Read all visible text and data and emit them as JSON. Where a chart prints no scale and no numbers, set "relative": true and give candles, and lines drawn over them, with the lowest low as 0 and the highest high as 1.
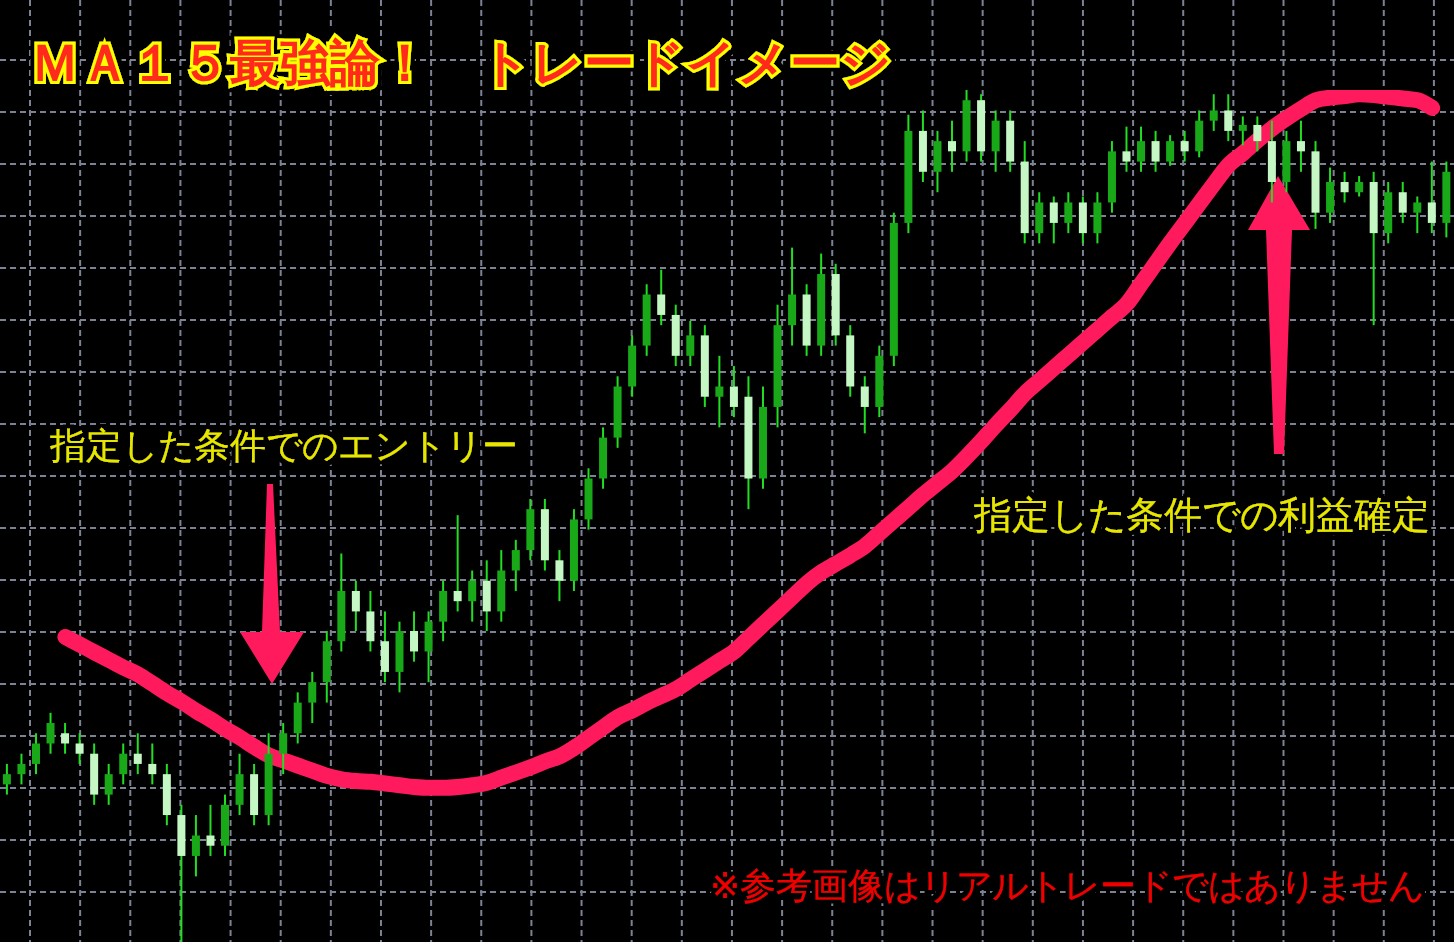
{
  "chart_data": {
    "type": "candlestick",
    "title": "ＭＡ１５最強論！　トレードイメージ",
    "annotations": [
      "指定した条件でのエントリー",
      "指定した条件での利益確定",
      "※参考画像はリアルトレードではありません"
    ],
    "relative": true,
    "grid": true,
    "color": "#22dd22",
    "categories": [
      null,
      null,
      null,
      null,
      null,
      null,
      null,
      null,
      null,
      null,
      null,
      null,
      null,
      null,
      null,
      null,
      null,
      null,
      null,
      null,
      null,
      null,
      null,
      null,
      null,
      null,
      null,
      null,
      null,
      null,
      null,
      null,
      null,
      null,
      null,
      null,
      null,
      null,
      null,
      null,
      null,
      null,
      null,
      null,
      null,
      null,
      null,
      null,
      null,
      null,
      null,
      null,
      null,
      null,
      null,
      null,
      null,
      null,
      null,
      null,
      null,
      null,
      null,
      null,
      null,
      null,
      null,
      null,
      null,
      null,
      null,
      null,
      null,
      null,
      null,
      null,
      null,
      null,
      null,
      null,
      null,
      null,
      null,
      null,
      null,
      null,
      null,
      null,
      null,
      null,
      null,
      null,
      null,
      null,
      null,
      null,
      null,
      null,
      null,
      null
    ],
    "ohlc": [
      [
        0.185,
        0.209,
        0.173,
        0.197
      ],
      [
        0.197,
        0.221,
        0.185,
        0.209
      ],
      [
        0.209,
        0.245,
        0.197,
        0.233
      ],
      [
        0.233,
        0.269,
        0.221,
        0.257
      ],
      [
        0.245,
        0.257,
        0.221,
        0.233
      ],
      [
        0.233,
        0.245,
        0.209,
        0.221
      ],
      [
        0.221,
        0.233,
        0.161,
        0.173
      ],
      [
        0.173,
        0.209,
        0.161,
        0.197
      ],
      [
        0.197,
        0.233,
        0.185,
        0.221
      ],
      [
        0.221,
        0.245,
        0.197,
        0.209
      ],
      [
        0.209,
        0.233,
        0.185,
        0.197
      ],
      [
        0.197,
        0.209,
        0.137,
        0.149
      ],
      [
        0.149,
        0.161,
        0,
        0.101
      ],
      [
        0.101,
        0.149,
        0.077,
        0.125
      ],
      [
        0.125,
        0.161,
        0.101,
        0.113
      ],
      [
        0.113,
        0.173,
        0.101,
        0.161
      ],
      [
        0.161,
        0.221,
        0.149,
        0.197
      ],
      [
        0.197,
        0.209,
        0.137,
        0.149
      ],
      [
        0.149,
        0.245,
        0.137,
        0.221
      ],
      [
        0.221,
        0.257,
        0.197,
        0.245
      ],
      [
        0.245,
        0.293,
        0.233,
        0.281
      ],
      [
        0.281,
        0.317,
        0.257,
        0.305
      ],
      [
        0.305,
        0.365,
        0.281,
        0.353
      ],
      [
        0.353,
        0.456,
        0.341,
        0.412
      ],
      [
        0.412,
        0.424,
        0.365,
        0.388
      ],
      [
        0.388,
        0.412,
        0.341,
        0.353
      ],
      [
        0.353,
        0.388,
        0.305,
        0.317
      ],
      [
        0.317,
        0.376,
        0.293,
        0.365
      ],
      [
        0.365,
        0.388,
        0.329,
        0.341
      ],
      [
        0.341,
        0.388,
        0.305,
        0.376
      ],
      [
        0.376,
        0.424,
        0.353,
        0.412
      ],
      [
        0.412,
        0.501,
        0.388,
        0.4
      ],
      [
        0.4,
        0.436,
        0.376,
        0.424
      ],
      [
        0.424,
        0.448,
        0.365,
        0.388
      ],
      [
        0.388,
        0.46,
        0.376,
        0.436
      ],
      [
        0.436,
        0.472,
        0.412,
        0.46
      ],
      [
        0.46,
        0.52,
        0.448,
        0.508
      ],
      [
        0.508,
        0.52,
        0.436,
        0.448
      ],
      [
        0.448,
        0.46,
        0.4,
        0.424
      ],
      [
        0.424,
        0.508,
        0.412,
        0.496
      ],
      [
        0.496,
        0.556,
        0.484,
        0.544
      ],
      [
        0.544,
        0.604,
        0.532,
        0.592
      ],
      [
        0.592,
        0.664,
        0.58,
        0.652
      ],
      [
        0.652,
        0.712,
        0.64,
        0.7
      ],
      [
        0.7,
        0.772,
        0.688,
        0.76
      ],
      [
        0.76,
        0.789,
        0.724,
        0.736
      ],
      [
        0.736,
        0.748,
        0.676,
        0.688
      ],
      [
        0.688,
        0.729,
        0.676,
        0.712
      ],
      [
        0.712,
        0.724,
        0.628,
        0.64
      ],
      [
        0.64,
        0.688,
        0.604,
        0.652
      ],
      [
        0.652,
        0.676,
        0.616,
        0.628
      ],
      [
        0.64,
        0.664,
        0.508,
        0.544
      ],
      [
        0.544,
        0.652,
        0.532,
        0.628
      ],
      [
        0.628,
        0.748,
        0.604,
        0.724
      ],
      [
        0.724,
        0.815,
        0.7,
        0.76
      ],
      [
        0.76,
        0.772,
        0.688,
        0.7
      ],
      [
        0.7,
        0.808,
        0.688,
        0.784
      ],
      [
        0.784,
        0.796,
        0.7,
        0.712
      ],
      [
        0.712,
        0.724,
        0.64,
        0.652
      ],
      [
        0.652,
        0.664,
        0.597,
        0.628
      ],
      [
        0.628,
        0.7,
        0.616,
        0.688
      ],
      [
        0.688,
        0.856,
        0.676,
        0.844
      ],
      [
        0.844,
        0.971,
        0.832,
        0.952
      ],
      [
        0.952,
        0.976,
        0.892,
        0.904
      ],
      [
        0.904,
        0.952,
        0.88,
        0.94
      ],
      [
        0.94,
        0.964,
        0.904,
        0.928
      ],
      [
        0.928,
        1,
        0.916,
        0.988
      ],
      [
        0.988,
        0.995,
        0.916,
        0.928
      ],
      [
        0.928,
        0.976,
        0.904,
        0.964
      ],
      [
        0.964,
        0.976,
        0.904,
        0.916
      ],
      [
        0.916,
        0.94,
        0.82,
        0.832
      ],
      [
        0.832,
        0.88,
        0.82,
        0.868
      ],
      [
        0.868,
        0.875,
        0.82,
        0.844
      ],
      [
        0.844,
        0.88,
        0.832,
        0.868
      ],
      [
        0.868,
        0.875,
        0.82,
        0.832
      ],
      [
        0.832,
        0.88,
        0.82,
        0.868
      ],
      [
        0.868,
        0.94,
        0.856,
        0.928
      ],
      [
        0.928,
        0.957,
        0.904,
        0.916
      ],
      [
        0.916,
        0.957,
        0.904,
        0.94
      ],
      [
        0.94,
        0.952,
        0.904,
        0.916
      ],
      [
        0.916,
        0.947,
        0.911,
        0.94
      ],
      [
        0.94,
        0.952,
        0.916,
        0.928
      ],
      [
        0.928,
        0.976,
        0.921,
        0.964
      ],
      [
        0.964,
        0.995,
        0.952,
        0.976
      ],
      [
        0.976,
        0.995,
        0.94,
        0.952
      ],
      [
        0.952,
        0.969,
        0.935,
        0.959
      ],
      [
        0.959,
        0.969,
        0.928,
        0.94
      ],
      [
        0.94,
        0.964,
        0.868,
        0.892
      ],
      [
        0.892,
        0.952,
        0.88,
        0.94
      ],
      [
        0.94,
        0.964,
        0.904,
        0.928
      ],
      [
        0.928,
        0.94,
        0.837,
        0.856
      ],
      [
        0.856,
        0.909,
        0.844,
        0.892
      ],
      [
        0.892,
        0.904,
        0.868,
        0.88
      ],
      [
        0.88,
        0.899,
        0.875,
        0.892
      ],
      [
        0.892,
        0.904,
        0.724,
        0.832
      ],
      [
        0.832,
        0.892,
        0.82,
        0.88
      ],
      [
        0.88,
        0.892,
        0.844,
        0.856
      ],
      [
        0.856,
        0.875,
        0.832,
        0.868
      ],
      [
        0.868,
        0.916,
        0.832,
        0.844
      ],
      [
        0.844,
        0.916,
        0.827,
        0.904
      ]
    ],
    "colors": [
      "#18a818",
      "#18a818",
      "#18a818",
      "#18a818",
      "#c4f7c4",
      "#c4f7c4",
      "#c4f7c4",
      "#18a818",
      "#18a818",
      "#c4f7c4",
      "#c4f7c4",
      "#c4f7c4",
      "#c4f7c4",
      "#18a818",
      "#c4f7c4",
      "#18a818",
      "#18a818",
      "#c4f7c4",
      "#18a818",
      "#18a818",
      "#18a818",
      "#18a818",
      "#18a818",
      "#18a818",
      "#c4f7c4",
      "#c4f7c4",
      "#c4f7c4",
      "#18a818",
      "#c4f7c4",
      "#18a818",
      "#18a818",
      "#c4f7c4",
      "#18a818",
      "#c4f7c4",
      "#18a818",
      "#18a818",
      "#18a818",
      "#c4f7c4",
      "#c4f7c4",
      "#18a818",
      "#18a818",
      "#18a818",
      "#18a818",
      "#18a818",
      "#18a818",
      "#c4f7c4",
      "#c4f7c4",
      "#18a818",
      "#c4f7c4",
      "#18a818",
      "#c4f7c4",
      "#c4f7c4",
      "#18a818",
      "#18a818",
      "#18a818",
      "#c4f7c4",
      "#18a818",
      "#c4f7c4",
      "#c4f7c4",
      "#c4f7c4",
      "#18a818",
      "#18a818",
      "#18a818",
      "#c4f7c4",
      "#18a818",
      "#c4f7c4",
      "#18a818",
      "#c4f7c4",
      "#18a818",
      "#c4f7c4",
      "#c4f7c4",
      "#18a818",
      "#c4f7c4",
      "#18a818",
      "#c4f7c4",
      "#18a818",
      "#18a818",
      "#c4f7c4",
      "#18a818",
      "#c4f7c4",
      "#18a818",
      "#c4f7c4",
      "#18a818",
      "#18a818",
      "#c4f7c4",
      "#18a818",
      "#c4f7c4",
      "#c4f7c4",
      "#18a818",
      "#c4f7c4",
      "#c4f7c4",
      "#18a818",
      "#c4f7c4",
      "#18a818",
      "#c4f7c4",
      "#18a818",
      "#c4f7c4",
      "#18a818",
      "#c4f7c4",
      "#18a818"
    ],
    "series": [
      {
        "type": "line",
        "color": "#ff1a5e",
        "values": [
          null,
          null,
          null,
          null,
          0.358,
          0.349,
          0.34,
          0.331,
          0.322,
          0.314,
          0.303,
          0.292,
          0.282,
          0.271,
          0.261,
          0.25,
          0.24,
          0.229,
          0.219,
          0.213,
          0.207,
          0.201,
          0.195,
          0.191,
          0.189,
          0.188,
          0.186,
          0.184,
          0.182,
          0.181,
          0.181,
          0.182,
          0.184,
          0.187,
          0.193,
          0.199,
          0.205,
          0.212,
          0.218,
          0.228,
          0.24,
          0.252,
          0.264,
          0.272,
          0.281,
          0.289,
          0.297,
          0.308,
          0.319,
          0.33,
          0.341,
          0.357,
          0.373,
          0.389,
          0.405,
          0.421,
          0.434,
          0.444,
          0.454,
          0.465,
          0.48,
          0.495,
          0.51,
          0.525,
          0.539,
          0.553,
          0.57,
          0.588,
          0.607,
          0.625,
          0.644,
          0.659,
          0.674,
          0.689,
          0.704,
          0.719,
          0.734,
          0.749,
          0.773,
          0.797,
          0.821,
          0.844,
          0.867,
          0.89,
          0.912,
          0.926,
          0.941,
          0.955,
          0.967,
          0.978,
          0.988,
          0.991,
          0.993,
          0.995,
          0.994,
          0.992,
          0.99,
          0.988,
          0.979,
          null
        ]
      }
    ]
  }
}
